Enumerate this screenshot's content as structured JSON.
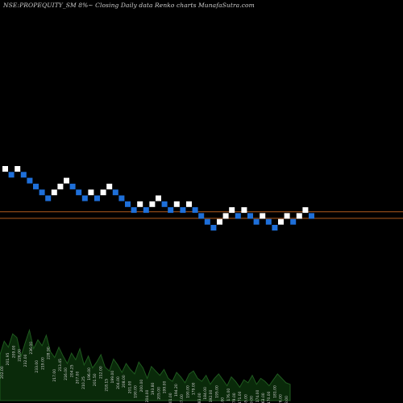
{
  "title": "NSE:PROPEQUITY_SM 8%~ Closing Daily data Renko charts MunafaSutra.com",
  "colors": {
    "background": "#000000",
    "brick_up": "#ffffff",
    "brick_down": "#1e6fd9",
    "line_1": "#b05a1e",
    "line_2": "#b05a1e",
    "volume_fill": "#0a2a0a",
    "volume_top": "#1f5a1f",
    "label_text": "#cfcfcf"
  },
  "chart_data": {
    "type": "renko",
    "title": "NSE:PROPEQUITY_SM 8%~ Closing Daily data Renko charts MunafaSutra.com",
    "bricks": [
      {
        "level": 0,
        "dir": "up"
      },
      {
        "level": -1,
        "dir": "down"
      },
      {
        "level": 0,
        "dir": "up"
      },
      {
        "level": -1,
        "dir": "down"
      },
      {
        "level": -2,
        "dir": "down"
      },
      {
        "level": -3,
        "dir": "down"
      },
      {
        "level": -4,
        "dir": "down"
      },
      {
        "level": -5,
        "dir": "down"
      },
      {
        "level": -4,
        "dir": "up"
      },
      {
        "level": -3,
        "dir": "up"
      },
      {
        "level": -2,
        "dir": "up"
      },
      {
        "level": -3,
        "dir": "down"
      },
      {
        "level": -4,
        "dir": "down"
      },
      {
        "level": -5,
        "dir": "down"
      },
      {
        "level": -4,
        "dir": "up"
      },
      {
        "level": -5,
        "dir": "down"
      },
      {
        "level": -4,
        "dir": "up"
      },
      {
        "level": -3,
        "dir": "up"
      },
      {
        "level": -4,
        "dir": "down"
      },
      {
        "level": -5,
        "dir": "down"
      },
      {
        "level": -6,
        "dir": "down"
      },
      {
        "level": -7,
        "dir": "down"
      },
      {
        "level": -6,
        "dir": "up"
      },
      {
        "level": -7,
        "dir": "down"
      },
      {
        "level": -6,
        "dir": "up"
      },
      {
        "level": -5,
        "dir": "up"
      },
      {
        "level": -6,
        "dir": "down"
      },
      {
        "level": -7,
        "dir": "down"
      },
      {
        "level": -6,
        "dir": "up"
      },
      {
        "level": -7,
        "dir": "down"
      },
      {
        "level": -6,
        "dir": "up"
      },
      {
        "level": -7,
        "dir": "down"
      },
      {
        "level": -8,
        "dir": "down"
      },
      {
        "level": -9,
        "dir": "down"
      },
      {
        "level": -10,
        "dir": "down"
      },
      {
        "level": -9,
        "dir": "up"
      },
      {
        "level": -8,
        "dir": "up"
      },
      {
        "level": -7,
        "dir": "up"
      },
      {
        "level": -8,
        "dir": "down"
      },
      {
        "level": -7,
        "dir": "up"
      },
      {
        "level": -8,
        "dir": "down"
      },
      {
        "level": -9,
        "dir": "down"
      },
      {
        "level": -8,
        "dir": "up"
      },
      {
        "level": -9,
        "dir": "down"
      },
      {
        "level": -10,
        "dir": "down"
      },
      {
        "level": -9,
        "dir": "up"
      },
      {
        "level": -8,
        "dir": "up"
      },
      {
        "level": -9,
        "dir": "down"
      },
      {
        "level": -8,
        "dir": "up"
      },
      {
        "level": -7,
        "dir": "up"
      },
      {
        "level": -8,
        "dir": "down"
      }
    ],
    "volume_heights": [
      0.62,
      0.8,
      0.72,
      0.9,
      0.85,
      0.6,
      0.78,
      0.95,
      0.7,
      0.82,
      0.74,
      0.88,
      0.66,
      0.58,
      0.72,
      0.6,
      0.5,
      0.64,
      0.55,
      0.7,
      0.48,
      0.6,
      0.44,
      0.52,
      0.62,
      0.45,
      0.4,
      0.56,
      0.48,
      0.38,
      0.5,
      0.42,
      0.36,
      0.52,
      0.44,
      0.3,
      0.46,
      0.4,
      0.34,
      0.42,
      0.3,
      0.26,
      0.38,
      0.32,
      0.24,
      0.36,
      0.4,
      0.3,
      0.26,
      0.34,
      0.22,
      0.3,
      0.36,
      0.28,
      0.2,
      0.32,
      0.26,
      0.18,
      0.28,
      0.24,
      0.34,
      0.22,
      0.3,
      0.26,
      0.2,
      0.28,
      0.36,
      0.3,
      0.24,
      0.22
    ],
    "volume_labels": [
      "202.00",
      "201.95",
      "209.00",
      "226.00",
      "232.00",
      "236.00",
      "233.00",
      "219.00",
      "228.90",
      "217.00",
      "213.45",
      "216.00",
      "204.25",
      "207.00",
      "210.25",
      "196.00",
      "201.50",
      "212.00",
      "218.15",
      "199.00",
      "204.00",
      "208.00",
      "201.00",
      "190.00",
      "200.00",
      "204.00",
      "193.80",
      "205.00",
      "199.00",
      "201.00",
      "194.20",
      "187.00",
      "190.00",
      "179.00",
      "183.00",
      "184.00",
      "192.00",
      "195.00",
      "180.00",
      "176.00",
      "179.00",
      "171.00",
      "165.00",
      "169.00",
      "174.00",
      "163.00",
      "170.00",
      "181.00",
      "176.00",
      "178.00"
    ],
    "lines": [
      {
        "level": -7.3
      },
      {
        "level": -8.4
      }
    ]
  }
}
